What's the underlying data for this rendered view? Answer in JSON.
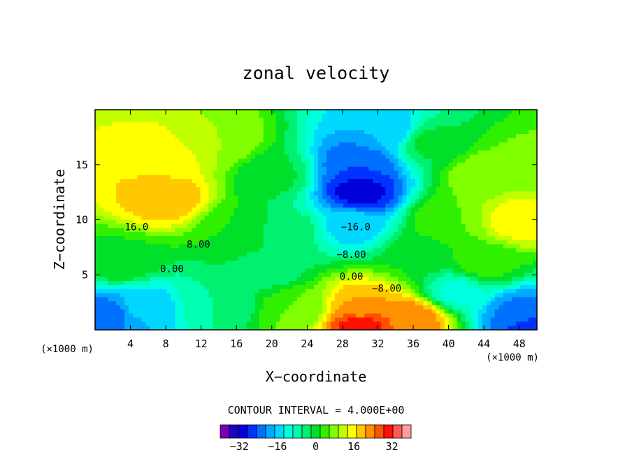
{
  "chart_data": {
    "type": "heatmap",
    "subtype": "filled-contour",
    "title": "zonal velocity",
    "xlabel": "X−coordinate",
    "ylabel": "Z−coordinate",
    "x_unit": "(×1000 m)",
    "z_unit": "(×1000 m)",
    "xlim": [
      0,
      50
    ],
    "ylim": [
      0,
      20
    ],
    "x_ticks": [
      4,
      8,
      12,
      16,
      20,
      24,
      28,
      32,
      36,
      40,
      44,
      48
    ],
    "y_ticks": [
      5,
      10,
      15
    ],
    "contour_interval_text": "CONTOUR INTERVAL = 4.000E+00",
    "contour_interval": 4,
    "levels": [
      -40,
      -36,
      -32,
      -28,
      -24,
      -20,
      -16,
      -12,
      -8,
      -4,
      0,
      4,
      8,
      12,
      16,
      20,
      24,
      28,
      32,
      36,
      40
    ],
    "colorbar_ticks": [
      "−32",
      "−16",
      "0",
      "16",
      "32"
    ],
    "colorbar_tick_values": [
      -32,
      -16,
      0,
      16,
      32
    ],
    "colorbar_colors": [
      "#7a00b4",
      "#2000c0",
      "#0000d8",
      "#0033ff",
      "#0070ff",
      "#00a8ff",
      "#00d8ff",
      "#00ffe0",
      "#00ffb0",
      "#00f070",
      "#00e028",
      "#30f000",
      "#80ff00",
      "#c0ff00",
      "#ffff00",
      "#ffc800",
      "#ff9000",
      "#ff5000",
      "#ff1000",
      "#ff5a5a",
      "#ff9ea0"
    ],
    "contour_labels": [
      {
        "text": "16.0",
        "x": 4.7,
        "y": 9.3
      },
      {
        "text": "8.00",
        "x": 11.7,
        "y": 7.7
      },
      {
        "text": "0.00",
        "x": 8.7,
        "y": 5.5
      },
      {
        "text": "−16.0",
        "x": 29.5,
        "y": 9.3
      },
      {
        "text": "−8.00",
        "x": 29.0,
        "y": 6.8
      },
      {
        "text": "0.00",
        "x": 29.0,
        "y": 4.8
      },
      {
        "text": "−8.00",
        "x": 33.0,
        "y": 3.7
      }
    ],
    "centers": [
      {
        "x": 8,
        "y": 12,
        "u": 23
      },
      {
        "x": 8,
        "y": 15.5,
        "u": 19
      },
      {
        "x": 1.5,
        "y": 1.5,
        "u": -22
      },
      {
        "x": 5,
        "y": 2.2,
        "u": -15
      },
      {
        "x": 14,
        "y": 2.5,
        "u": -4
      },
      {
        "x": 20,
        "y": 5.5,
        "u": -2
      },
      {
        "x": 30,
        "y": 15,
        "u": -24
      },
      {
        "x": 30,
        "y": 12.5,
        "u": -30
      },
      {
        "x": 29,
        "y": 9.5,
        "u": -14
      },
      {
        "x": 33,
        "y": 18,
        "u": -16
      },
      {
        "x": 30,
        "y": 2,
        "u": 24
      },
      {
        "x": 30,
        "y": 0.5,
        "u": 34
      },
      {
        "x": 36,
        "y": 1,
        "u": 27
      },
      {
        "x": 40,
        "y": 10,
        "u": 8
      },
      {
        "x": 44,
        "y": 14,
        "u": 11
      },
      {
        "x": 48,
        "y": 10,
        "u": 19
      },
      {
        "x": 49,
        "y": 15,
        "u": 9
      },
      {
        "x": 41,
        "y": 3.5,
        "u": -9
      },
      {
        "x": 48,
        "y": 1.5,
        "u": -21
      },
      {
        "x": 49.5,
        "y": 0.3,
        "u": -27
      },
      {
        "x": 44,
        "y": 6,
        "u": 6
      },
      {
        "x": 20,
        "y": 14,
        "u": 1
      },
      {
        "x": 22,
        "y": 9,
        "u": -2
      },
      {
        "x": 14,
        "y": 17,
        "u": 12
      },
      {
        "x": 16,
        "y": 9,
        "u": 4
      },
      {
        "x": 3,
        "y": 6,
        "u": 3
      },
      {
        "x": 38,
        "y": 17,
        "u": 1
      },
      {
        "x": 37,
        "y": 7,
        "u": 3
      },
      {
        "x": 23,
        "y": 2,
        "u": 8
      }
    ]
  }
}
